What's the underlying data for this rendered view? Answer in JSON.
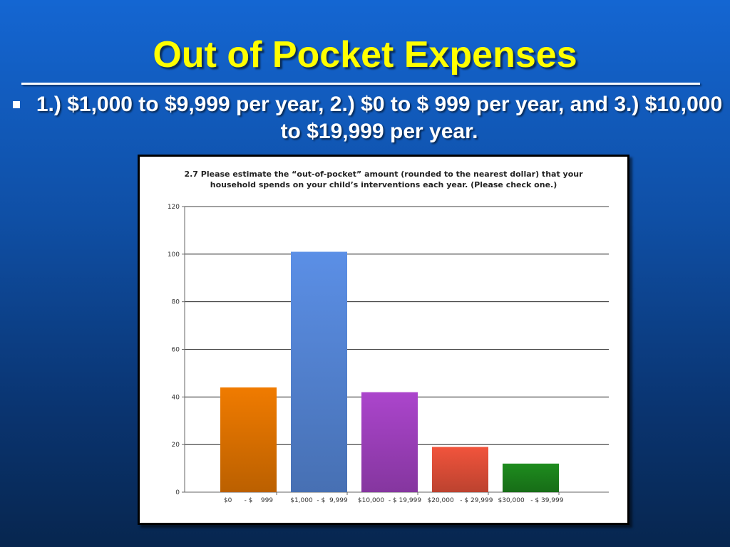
{
  "slide": {
    "title": "Out of Pocket Expenses",
    "bullet": "1.) $1,000 to $9,999 per year, 2.) $0 to $ 999 per year, and 3.) $10,000 to $19,999 per year."
  },
  "colors": {
    "title": "#ffff00",
    "bars": [
      "#f07b00",
      "#5b8fe6",
      "#ab45cc",
      "#f1543c",
      "#1e8c1e"
    ]
  },
  "chart_data": {
    "type": "bar",
    "title": "2.7 Please estimate the “out-of-pocket” amount (rounded to the nearest dollar) that your household spends on your child’s interventions each year. (Please check one.)",
    "categories": [
      "$0      - $    999",
      "$1,000  - $  9,999",
      "$10,000  - $ 19,999",
      "$20,000   - $ 29,999",
      "$30,000   - $ 39,999"
    ],
    "values": [
      44,
      101,
      42,
      19,
      12
    ],
    "yticks": [
      0,
      20,
      40,
      60,
      80,
      100,
      120
    ],
    "ylim": [
      0,
      120
    ],
    "grid": true,
    "legend": "none"
  }
}
